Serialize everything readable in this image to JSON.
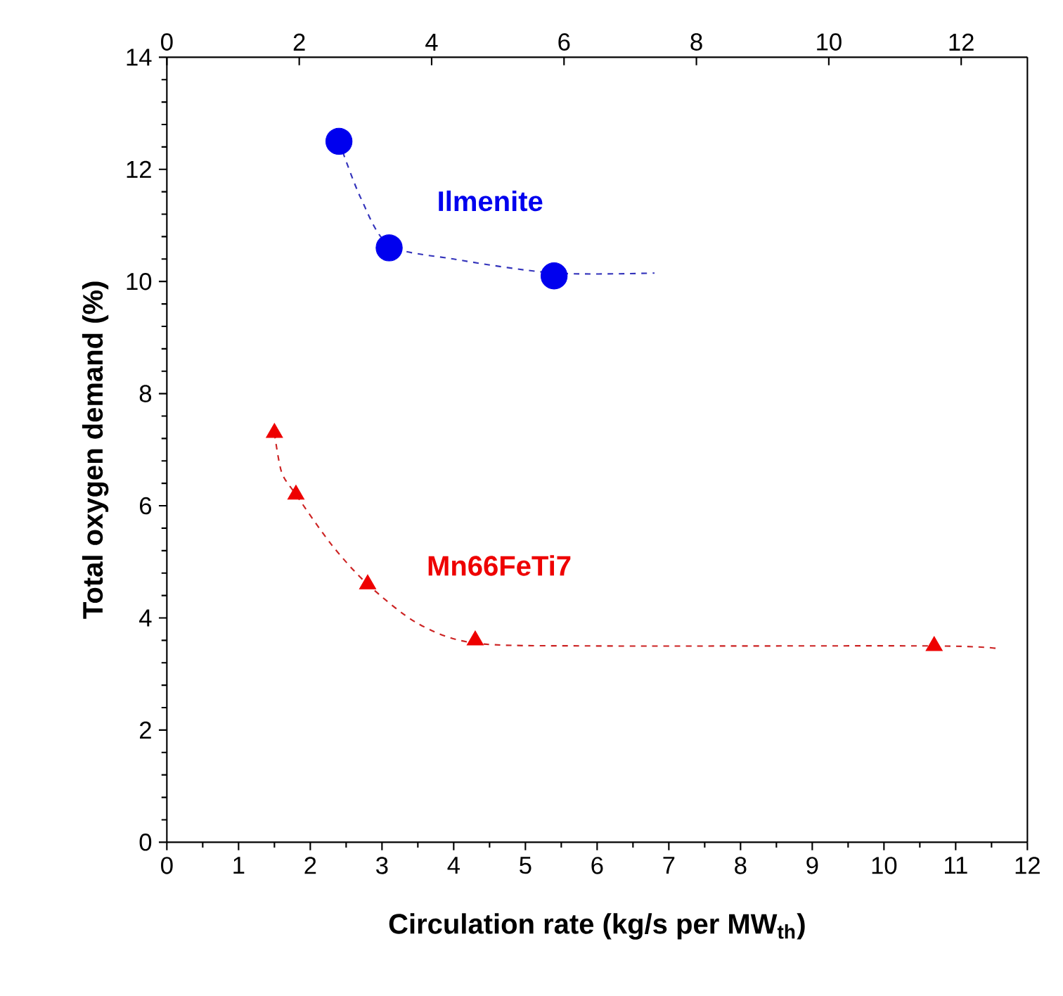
{
  "chart_data": {
    "type": "scatter",
    "xlabel": "Circulation rate (kg/s per MW$_{th}$)",
    "ylabel": "Total oxygen demand (%)",
    "xlim": [
      0,
      12
    ],
    "xticks": [
      0,
      1,
      2,
      3,
      4,
      5,
      6,
      7,
      8,
      9,
      10,
      11,
      12
    ],
    "x2lim": [
      0,
      13
    ],
    "x2ticks": [
      0,
      2,
      4,
      6,
      8,
      10,
      12
    ],
    "ylim": [
      0,
      14
    ],
    "yticks": [
      0,
      2,
      4,
      6,
      8,
      10,
      12,
      14
    ],
    "grid": false,
    "series": [
      {
        "name": "Ilmenite",
        "marker": "circle",
        "color": "#0000ee",
        "x": [
          2.4,
          3.1,
          5.4
        ],
        "values": [
          12.5,
          10.6,
          10.1
        ]
      },
      {
        "type": "line",
        "line_style": "dashed",
        "color": "#3333bb",
        "x": [
          2.4,
          2.7,
          3.1,
          4.0,
          5.4,
          6.8
        ],
        "values": [
          12.5,
          11.5,
          10.65,
          10.4,
          10.15,
          10.15
        ]
      },
      {
        "name": "Mn66FeTi7",
        "marker": "triangle",
        "color": "#ee0000",
        "x": [
          1.5,
          1.8,
          2.8,
          4.3,
          10.7
        ],
        "values": [
          7.3,
          6.2,
          4.6,
          3.6,
          3.5
        ]
      },
      {
        "type": "line",
        "line_style": "dashed",
        "color": "#cc2222",
        "x": [
          1.5,
          1.6,
          1.8,
          2.3,
          2.8,
          3.5,
          4.3,
          6.0,
          10.7,
          11.6
        ],
        "values": [
          7.3,
          6.6,
          6.2,
          5.3,
          4.6,
          3.9,
          3.55,
          3.5,
          3.5,
          3.45
        ]
      }
    ]
  }
}
